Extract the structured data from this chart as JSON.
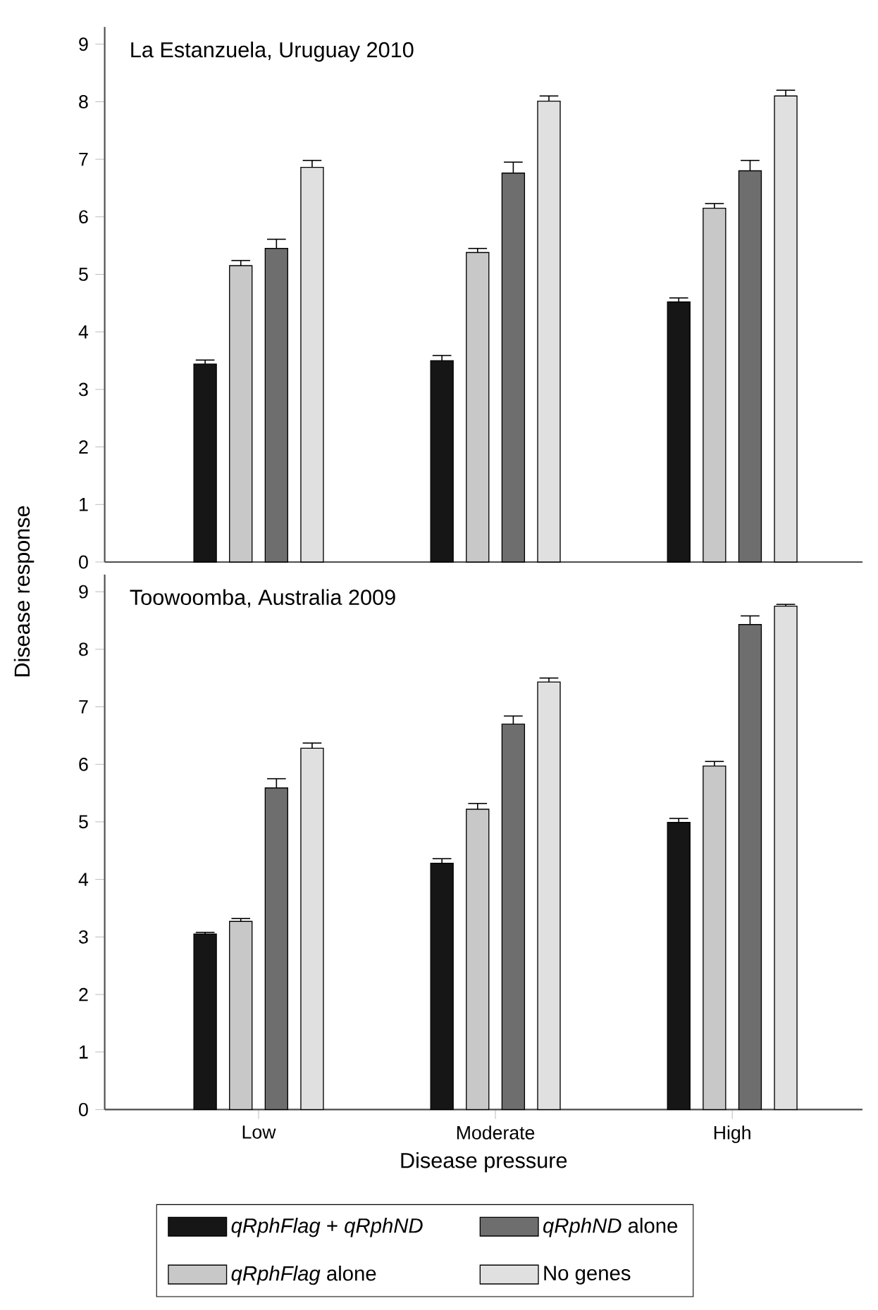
{
  "chart_data": [
    {
      "type": "bar",
      "title": "La Estanzuela, Uruguay 2010",
      "ylabel": "Disease response",
      "categories": [
        null,
        null,
        null
      ],
      "ylim": [
        0,
        9.3
      ],
      "yticks": [
        0,
        1,
        2,
        3,
        4,
        5,
        6,
        7,
        8,
        9
      ],
      "tick_labels": "y",
      "series": [
        {
          "color": "#161616",
          "values": [
            3.44,
            3.5,
            4.52
          ],
          "errors": [
            0.07,
            0.09,
            0.07
          ]
        },
        {
          "color": "#c8c8c8",
          "values": [
            5.15,
            5.38,
            6.15
          ],
          "errors": [
            0.09,
            0.07,
            0.08
          ]
        },
        {
          "color": "#6e6e6e",
          "values": [
            5.45,
            6.76,
            6.8
          ],
          "errors": [
            0.16,
            0.19,
            0.18
          ]
        },
        {
          "color": "#e0e0e0",
          "values": [
            6.86,
            8.01,
            8.1
          ],
          "errors": [
            0.12,
            0.09,
            0.1
          ]
        }
      ]
    },
    {
      "type": "bar",
      "title": "Toowoomba, Australia 2009",
      "xlabel": "Disease pressure",
      "categories": [
        "Low",
        "Moderate",
        "High"
      ],
      "ylim": [
        0,
        9.3
      ],
      "yticks": [
        0,
        1,
        2,
        3,
        4,
        5,
        6,
        7,
        8,
        9
      ],
      "legend": "bottom",
      "series": [
        {
          "name": "*qRphFlag* + *qRphND*",
          "color": "#161616",
          "values": [
            3.05,
            4.28,
            4.99
          ],
          "errors": [
            0.03,
            0.08,
            0.07
          ]
        },
        {
          "name": "*qRphFlag* alone",
          "color": "#c8c8c8",
          "values": [
            3.27,
            5.22,
            5.97
          ],
          "errors": [
            0.05,
            0.1,
            0.08
          ]
        },
        {
          "name": "*qRphND* alone",
          "color": "#6e6e6e",
          "values": [
            5.59,
            6.7,
            8.43
          ],
          "errors": [
            0.16,
            0.14,
            0.15
          ]
        },
        {
          "name": "No genes",
          "color": "#e0e0e0",
          "values": [
            6.28,
            7.43,
            8.75
          ],
          "errors": [
            0.09,
            0.07,
            0.03
          ]
        }
      ]
    }
  ]
}
